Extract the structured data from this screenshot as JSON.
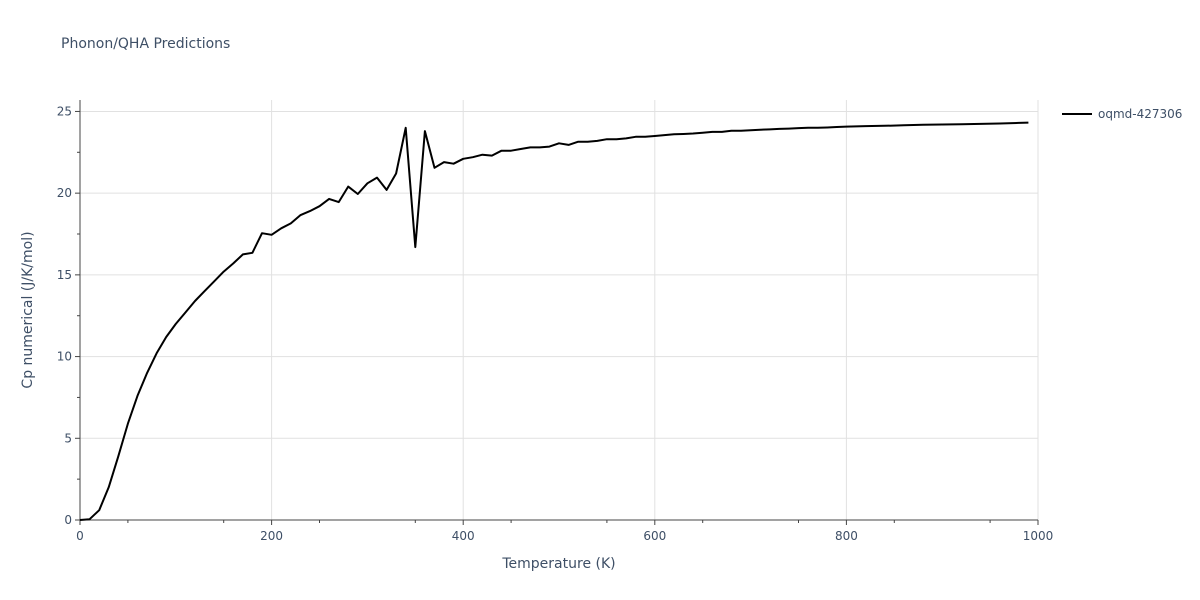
{
  "chart_data": {
    "type": "line",
    "title": "Phonon/QHA Predictions",
    "xlabel": "Temperature (K)",
    "ylabel": "Cp numerical (J/K/mol)",
    "xlim": [
      0,
      1000
    ],
    "ylim": [
      0,
      25.7
    ],
    "xticks": [
      0,
      200,
      400,
      600,
      800,
      1000
    ],
    "yticks": [
      0,
      5,
      10,
      15,
      20,
      25
    ],
    "grid": true,
    "legend_position": "top-right",
    "colors": {
      "series": "#000000",
      "grid": "#e1e1e1",
      "text": "#3e4f66"
    },
    "series": [
      {
        "name": "oqmd-427306",
        "x": [
          0,
          10,
          20,
          30,
          40,
          50,
          60,
          70,
          80,
          90,
          100,
          110,
          120,
          130,
          140,
          150,
          160,
          170,
          180,
          190,
          200,
          210,
          220,
          230,
          240,
          250,
          260,
          270,
          280,
          290,
          300,
          310,
          320,
          330,
          340,
          350,
          360,
          370,
          380,
          390,
          400,
          410,
          420,
          430,
          440,
          450,
          460,
          470,
          480,
          490,
          500,
          510,
          520,
          530,
          540,
          550,
          560,
          570,
          580,
          590,
          600,
          610,
          620,
          630,
          640,
          650,
          660,
          670,
          680,
          690,
          700,
          710,
          720,
          730,
          740,
          750,
          760,
          770,
          780,
          790,
          800,
          820,
          840,
          860,
          880,
          900,
          920,
          940,
          960,
          980,
          990
        ],
        "y": [
          0,
          0.05,
          0.6,
          2.0,
          3.9,
          5.9,
          7.6,
          9.0,
          10.2,
          11.2,
          12.0,
          12.7,
          13.4,
          14.0,
          14.6,
          15.2,
          15.7,
          16.25,
          16.35,
          17.55,
          17.45,
          17.85,
          18.15,
          18.65,
          18.9,
          19.2,
          19.65,
          19.45,
          20.4,
          19.95,
          20.6,
          20.95,
          20.2,
          21.2,
          24.0,
          16.7,
          23.8,
          21.55,
          21.9,
          21.8,
          22.1,
          22.2,
          22.35,
          22.3,
          22.6,
          22.6,
          22.7,
          22.8,
          22.8,
          22.85,
          23.05,
          22.95,
          23.15,
          23.15,
          23.2,
          23.3,
          23.3,
          23.35,
          23.45,
          23.45,
          23.5,
          23.55,
          23.6,
          23.62,
          23.65,
          23.7,
          23.75,
          23.75,
          23.82,
          23.82,
          23.85,
          23.88,
          23.9,
          23.93,
          23.95,
          23.98,
          24.0,
          24.0,
          24.02,
          24.05,
          24.07,
          24.1,
          24.12,
          24.15,
          24.18,
          24.2,
          24.22,
          24.24,
          24.26,
          24.3,
          24.32
        ]
      }
    ]
  }
}
